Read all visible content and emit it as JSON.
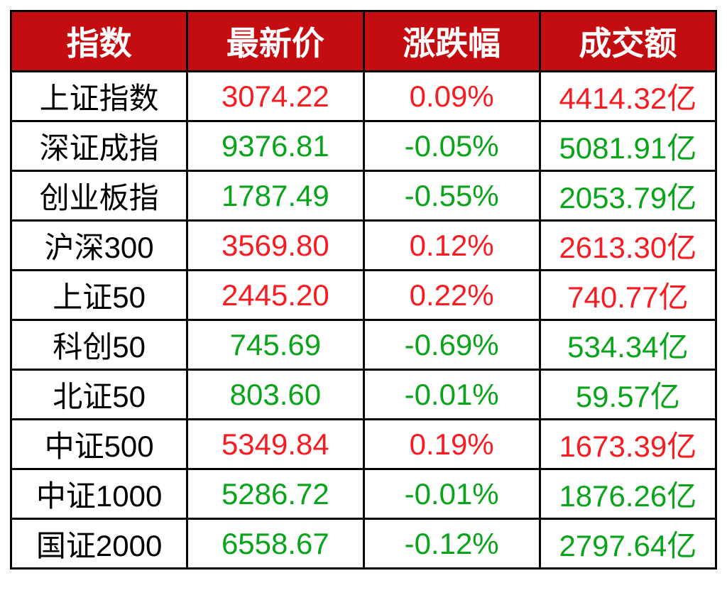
{
  "colors": {
    "header_background": "#C40D11",
    "header_text": "#FFFFFF",
    "up_red": "#F81C22",
    "down_green": "#0AA41B",
    "index_name_text": "#000000",
    "grid_border": "#000000",
    "page_background": "#FFFFFF"
  },
  "chart_data": {
    "type": "table",
    "columns": [
      "指数",
      "最新价",
      "涨跌幅",
      "成交额"
    ],
    "rows": [
      {
        "index": "上证指数",
        "price": "3074.22",
        "change": "0.09%",
        "turnover": "4414.32亿",
        "trend": "up"
      },
      {
        "index": "深证成指",
        "price": "9376.81",
        "change": "-0.05%",
        "turnover": "5081.91亿",
        "trend": "down"
      },
      {
        "index": "创业板指",
        "price": "1787.49",
        "change": "-0.55%",
        "turnover": "2053.79亿",
        "trend": "down"
      },
      {
        "index": "沪深300",
        "price": "3569.80",
        "change": "0.12%",
        "turnover": "2613.30亿",
        "trend": "up"
      },
      {
        "index": "上证50",
        "price": "2445.20",
        "change": "0.22%",
        "turnover": "740.77亿",
        "trend": "up"
      },
      {
        "index": "科创50",
        "price": "745.69",
        "change": "-0.69%",
        "turnover": "534.34亿",
        "trend": "down"
      },
      {
        "index": "北证50",
        "price": "803.60",
        "change": "-0.01%",
        "turnover": "59.57亿",
        "trend": "down"
      },
      {
        "index": "中证500",
        "price": "5349.84",
        "change": "0.19%",
        "turnover": "1673.39亿",
        "trend": "up"
      },
      {
        "index": "中证1000",
        "price": "5286.72",
        "change": "-0.01%",
        "turnover": "1876.26亿",
        "trend": "down"
      },
      {
        "index": "国证2000",
        "price": "6558.67",
        "change": "-0.12%",
        "turnover": "2797.64亿",
        "trend": "down"
      }
    ]
  }
}
